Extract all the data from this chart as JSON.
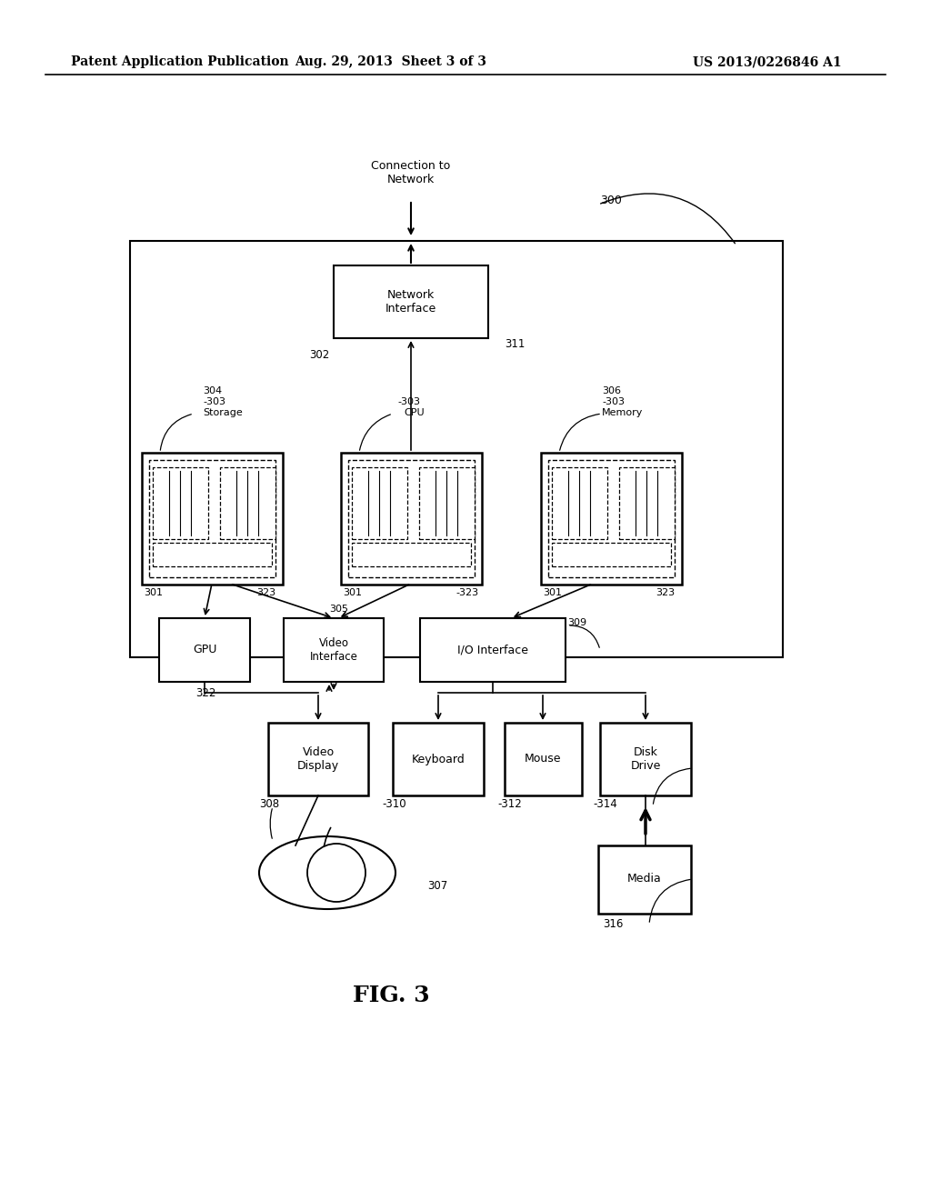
{
  "background_color": "#ffffff",
  "header_left": "Patent Application Publication",
  "header_center": "Aug. 29, 2013  Sheet 3 of 3",
  "header_right": "US 2013/0226846 A1",
  "fig_label": "FIG. 3"
}
